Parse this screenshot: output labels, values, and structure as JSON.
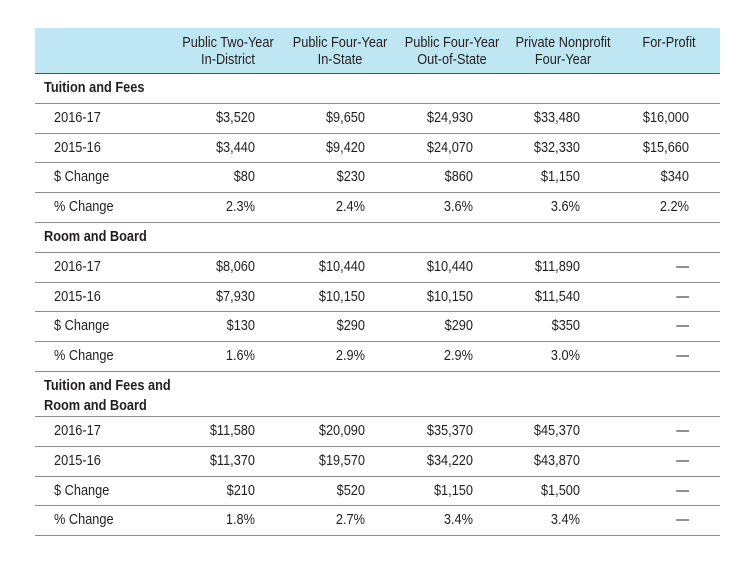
{
  "chart_data": {
    "type": "table",
    "columns": [
      [
        "Public Two-Year",
        "In-District"
      ],
      [
        "Public Four-Year",
        "In-State"
      ],
      [
        "Public Four-Year",
        "Out-of-State"
      ],
      [
        "Private Nonprofit",
        "Four-Year"
      ],
      [
        "For-Profit"
      ]
    ],
    "sections": [
      {
        "title": [
          "Tuition and Fees"
        ],
        "rows": [
          {
            "label": "2016-17",
            "values": [
              "$3,520",
              "$9,650",
              "$24,930",
              "$33,480",
              "$16,000"
            ]
          },
          {
            "label": "2015-16",
            "values": [
              "$3,440",
              "$9,420",
              "$24,070",
              "$32,330",
              "$15,660"
            ]
          },
          {
            "label": "$ Change",
            "values": [
              "$80",
              "$230",
              "$860",
              "$1,150",
              "$340"
            ]
          },
          {
            "label": "% Change",
            "values": [
              "2.3%",
              "2.4%",
              "3.6%",
              "3.6%",
              "2.2%"
            ]
          }
        ]
      },
      {
        "title": [
          "Room and Board"
        ],
        "rows": [
          {
            "label": "2016-17",
            "values": [
              "$8,060",
              "$10,440",
              "$10,440",
              "$11,890",
              "—"
            ]
          },
          {
            "label": "2015-16",
            "values": [
              "$7,930",
              "$10,150",
              "$10,150",
              "$11,540",
              "—"
            ]
          },
          {
            "label": "$ Change",
            "values": [
              "$130",
              "$290",
              "$290",
              "$350",
              "—"
            ]
          },
          {
            "label": "% Change",
            "values": [
              "1.6%",
              "2.9%",
              "2.9%",
              "3.0%",
              "—"
            ]
          }
        ]
      },
      {
        "title": [
          "Tuition and Fees and",
          "Room and Board"
        ],
        "rows": [
          {
            "label": "2016-17",
            "values": [
              "$11,580",
              "$20,090",
              "$35,370",
              "$45,370",
              "—"
            ]
          },
          {
            "label": "2015-16",
            "values": [
              "$11,370",
              "$19,570",
              "$34,220",
              "$43,870",
              "—"
            ]
          },
          {
            "label": "$ Change",
            "values": [
              "$210",
              "$520",
              "$1,150",
              "$1,500",
              "—"
            ]
          },
          {
            "label": "% Change",
            "values": [
              "1.8%",
              "2.7%",
              "3.4%",
              "3.4%",
              "—"
            ]
          }
        ]
      }
    ]
  },
  "colors": {
    "header_background": "#bfe6f3",
    "text": "#231f20",
    "rule": "#8c8c8c"
  }
}
